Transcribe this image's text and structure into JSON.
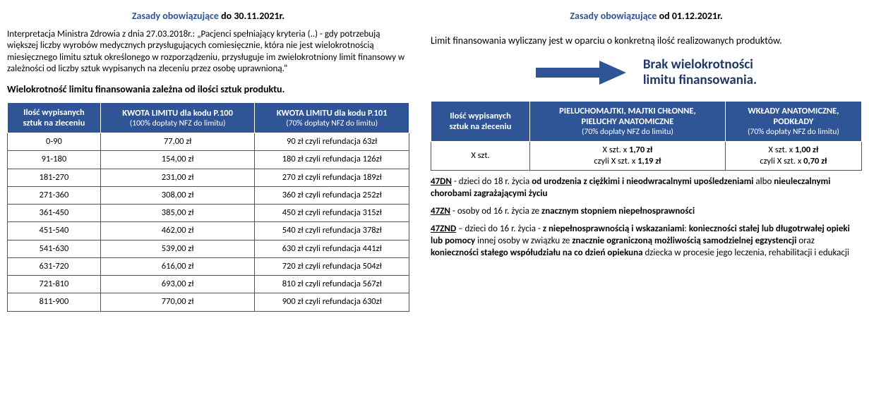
{
  "left": {
    "heading_blue": "Zasady obowiązujące",
    "heading_black": " do 30.11.2021r.",
    "intro": "Interpretacja Ministra Zdrowia z dnia 27.03.2018r.: „Pacjenci spełniający kryteria (..) - gdy potrzebują większej liczby wyrobów medycznych przysługujących comiesięcznie, która nie jest wielokrotnością miesięcznego limitu sztuk określonego w rozporządzeniu, przysługuje im zwielokrotniony limit finansowy w zależności od liczby sztuk wypisanych na zleceniu przez osobę uprawnioną.”",
    "subheading": "Wielokrotność limitu finansowania zależna od ilości sztuk produktu.",
    "table": {
      "col1_l1": "Ilość wypisanych",
      "col1_l2": "sztuk na zleceniu",
      "col2_l1": "KWOTA LIMITU dla kodu P.100",
      "col2_l2": "(100% dopłaty NFZ do limitu)",
      "col3_l1": "KWOTA LIMITU dla kodu P.101",
      "col3_l2": "(70% dopłaty NFZ do limitu)",
      "rows": [
        {
          "a": "0-90",
          "b": "77,00 zł",
          "c": "90 zł czyli refundacja 63zł"
        },
        {
          "a": "91-180",
          "b": "154,00 zł",
          "c": "180 zł czyli refundacja 126zł"
        },
        {
          "a": "181-270",
          "b": "231,00 zł",
          "c": "270 zł czyli refundacja 189zł"
        },
        {
          "a": "271-360",
          "b": "308,00 zł",
          "c": "360 zł czyli refundacja 252zł"
        },
        {
          "a": "361-450",
          "b": "385,00 zł",
          "c": "450 zł czyli refundacja 315zł"
        },
        {
          "a": "451-540",
          "b": "462,00 zł",
          "c": "540 zł czyli refundacja 378zł"
        },
        {
          "a": "541-630",
          "b": "539,00 zł",
          "c": "630 zł czyli refundacja 441zł"
        },
        {
          "a": "631-720",
          "b": "616,00 zł",
          "c": "720 zł czyli refundacja 504zł"
        },
        {
          "a": "721-810",
          "b": "693,00 zł",
          "c": "810 zł czyli refundacja 567zł"
        },
        {
          "a": "811-900",
          "b": "770,00 zł",
          "c": "900 zł czyli refundacja 630zł"
        }
      ]
    }
  },
  "right": {
    "heading_blue": "Zasady obowiązujące",
    "heading_black": " od 01.12.2021r.",
    "intro": "Limit finansowania wyliczany jest w oparciu o konkretną ilość realizowanych produktów.",
    "arrow_color": "#2f5597",
    "arrow_caption_l1": "Brak wielokrotności",
    "arrow_caption_l2": "limitu finansowania.",
    "table": {
      "col1_l1": "Ilość wypisanych",
      "col1_l2": "sztuk na zleceniu",
      "col2_l1": "PIELUCHOMAJTKI, MAJTKI CHŁONNE,",
      "col2_l2": "PIELUCHY ANATOMICZNE",
      "col2_l3": "(70% dopłaty NFZ do limitu)",
      "col3_l1": "WKŁADY ANATOMICZNE,",
      "col3_l2": "PODKŁADY",
      "col3_l3": "(70% dopłaty NFZ do limitu)",
      "row": {
        "a": "X szt.",
        "b_pre1": "X szt. x ",
        "b_b1": "1,70 zł",
        "b_pre2": "czyli X szt. x ",
        "b_b2": "1,19 zł",
        "c_pre1": "X szt. x ",
        "c_b1": "1,00 zł",
        "c_pre2": "czyli X szt. x ",
        "c_b2": "0,70 zł"
      }
    },
    "codes": {
      "c1_code": "47DN",
      "c1_t1": " - dzieci do 18 r. życia ",
      "c1_b1": "od urodzenia z ciężkimi i nieodwracalnymi  upośledzeniami",
      "c1_t2": " albo ",
      "c1_b2": "nieuleczalnymi chorobami zagrażającymi życiu",
      "c2_code": "47ZN",
      "c2_t1": " - osoby od 16 r. życia ze ",
      "c2_b1": "znacznym stopniem niepełnosprawności",
      "c3_code": "47ZND",
      "c3_t1": " – dzieci do 16 r. życia -  ",
      "c3_b1": "z niepełnosprawnością i wskazaniami",
      "c3_t2": ": ",
      "c3_b2": "konieczności stałej lub długotrwałej opieki lub pomocy",
      "c3_t3": " innej osoby w związku ze ",
      "c3_b3": "znacznie ograniczoną możliwością samodzielnej egzystencji",
      "c3_t4": " oraz ",
      "c3_b4": "konieczności stałego współudziału na co dzień opiekuna",
      "c3_t5": " dziecka w procesie jego leczenia, rehabilitacji i edukacji"
    }
  },
  "colors": {
    "header_bg": "#2f5597",
    "heading_blue": "#2f5597",
    "arrow_caption": "#1f3864"
  }
}
